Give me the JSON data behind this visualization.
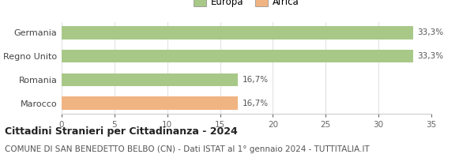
{
  "categories": [
    "Marocco",
    "Romania",
    "Regno Unito",
    "Germania"
  ],
  "values": [
    16.7,
    16.7,
    33.3,
    33.3
  ],
  "bar_colors": [
    "#f0b482",
    "#a8c888",
    "#a8c888",
    "#a8c888"
  ],
  "labels": [
    "16,7%",
    "16,7%",
    "33,3%",
    "33,3%"
  ],
  "legend_europa_color": "#a8c888",
  "legend_africa_color": "#f0b482",
  "xlim": [
    0,
    35
  ],
  "xticks": [
    0,
    5,
    10,
    15,
    20,
    25,
    30,
    35
  ],
  "title": "Cittadini Stranieri per Cittadinanza - 2024",
  "subtitle": "COMUNE DI SAN BENEDETTO BELBO (CN) - Dati ISTAT al 1° gennaio 2024 - TUTTITALIA.IT",
  "bg_color": "#ffffff",
  "bar_height": 0.55,
  "title_fontsize": 9,
  "subtitle_fontsize": 7.5,
  "label_fontsize": 7.5,
  "tick_fontsize": 7.5,
  "ytick_fontsize": 8,
  "legend_fontsize": 8.5
}
